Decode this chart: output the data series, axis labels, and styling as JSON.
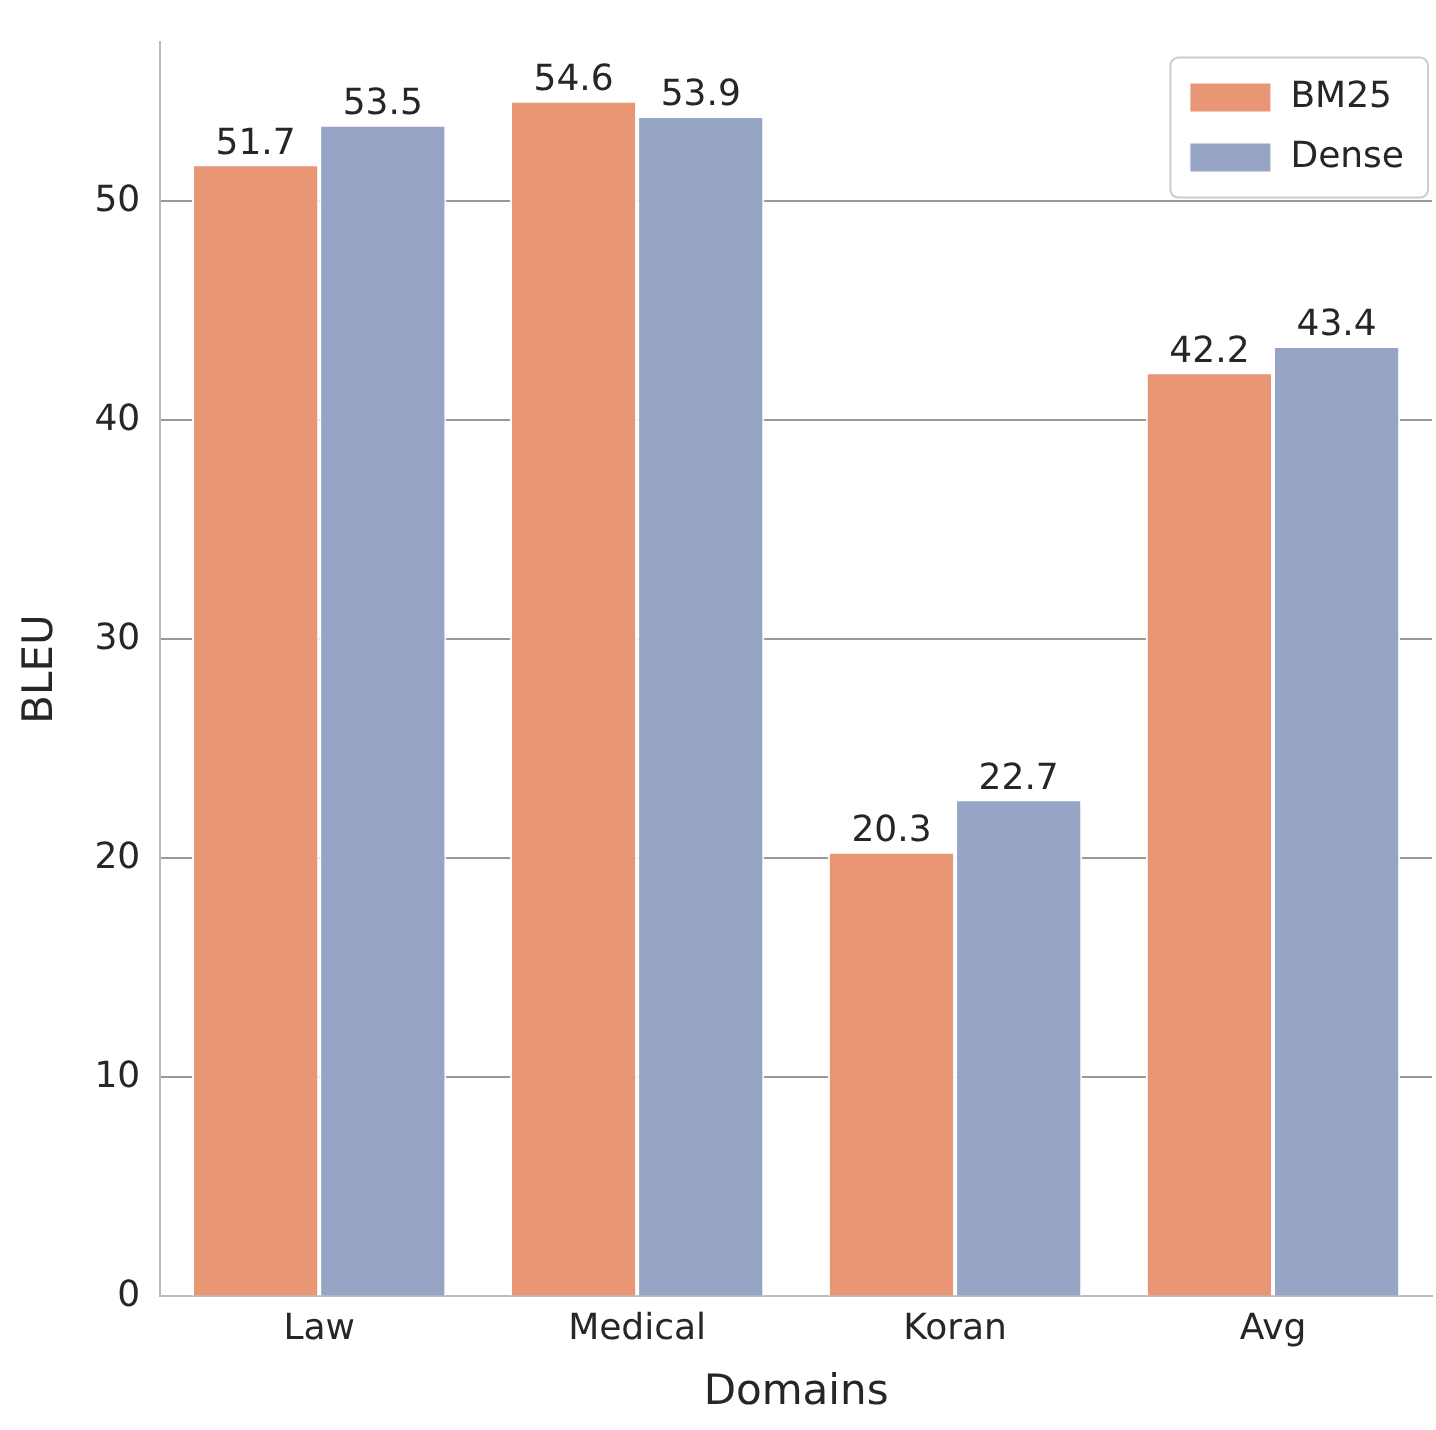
{
  "chart_data": {
    "type": "bar",
    "xlabel": "Domains",
    "ylabel": "BLEU",
    "categories": [
      "Law",
      "Medical",
      "Koran",
      "Avg"
    ],
    "series": [
      {
        "name": "BM25",
        "color": "#e99675",
        "values": [
          51.7,
          54.6,
          20.3,
          42.2
        ]
      },
      {
        "name": "Dense",
        "color": "#96a4c6",
        "values": [
          53.5,
          53.9,
          22.7,
          43.4
        ]
      }
    ],
    "ylim": [
      0,
      57.3
    ],
    "yticks": [
      0,
      10,
      20,
      30,
      40,
      50
    ],
    "grid": "y",
    "legend": "top right",
    "data_labels": true
  }
}
